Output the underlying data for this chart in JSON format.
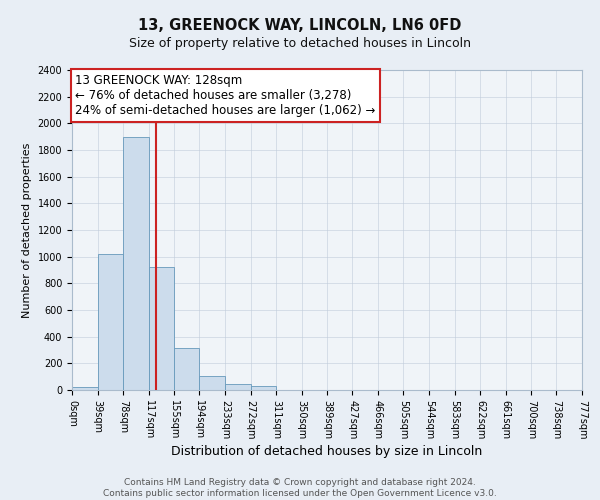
{
  "title": "13, GREENOCK WAY, LINCOLN, LN6 0FD",
  "subtitle": "Size of property relative to detached houses in Lincoln",
  "xlabel": "Distribution of detached houses by size in Lincoln",
  "ylabel": "Number of detached properties",
  "bar_color": "#ccdcec",
  "bar_edge_color": "#6699bb",
  "background_color": "#e8eef5",
  "plot_bg_color": "#f0f4f8",
  "annotation_box_color": "#ffffff",
  "annotation_box_edge": "#cc2222",
  "vline_color": "#cc2222",
  "vline_x": 128,
  "property_label": "13 GREENOCK WAY: 128sqm",
  "stat_line1": "← 76% of detached houses are smaller (3,278)",
  "stat_line2": "24% of semi-detached houses are larger (1,062) →",
  "bin_edges": [
    0,
    39,
    78,
    117,
    155,
    194,
    233,
    272,
    311,
    350,
    389,
    427,
    466,
    505,
    544,
    583,
    622,
    661,
    700,
    738,
    777
  ],
  "bin_heights": [
    22,
    1020,
    1900,
    920,
    315,
    105,
    48,
    28,
    0,
    0,
    0,
    0,
    0,
    0,
    0,
    0,
    0,
    0,
    0,
    0
  ],
  "ylim": [
    0,
    2400
  ],
  "yticks": [
    0,
    200,
    400,
    600,
    800,
    1000,
    1200,
    1400,
    1600,
    1800,
    2000,
    2200,
    2400
  ],
  "footer_line1": "Contains HM Land Registry data © Crown copyright and database right 2024.",
  "footer_line2": "Contains public sector information licensed under the Open Government Licence v3.0.",
  "title_fontsize": 10.5,
  "subtitle_fontsize": 9,
  "xlabel_fontsize": 9,
  "ylabel_fontsize": 8,
  "tick_fontsize": 7,
  "footer_fontsize": 6.5,
  "annot_fontsize": 8.5
}
